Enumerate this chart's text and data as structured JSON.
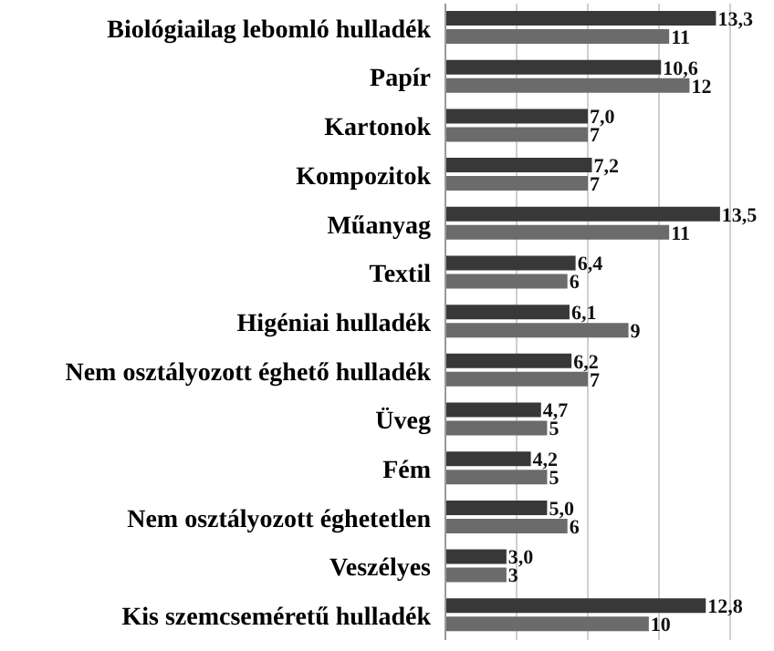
{
  "chart_data": {
    "type": "bar",
    "orientation": "horizontal",
    "categories": [
      "Biológiailag lebomló hulladék",
      "Papír",
      "Kartonok",
      "Kompozitok",
      "Műanyag",
      "Textil",
      "Higéniai hulladék",
      "Nem osztályozott éghető hulladék",
      "Üveg",
      "Fém",
      "Nem osztályozott éghetetlen",
      "Veszélyes",
      "Kis szemcseméretű hulladék"
    ],
    "series": [
      {
        "color": "#383838",
        "values": [
          13.3,
          10.6,
          7.0,
          7.2,
          13.5,
          6.4,
          6.1,
          6.2,
          4.7,
          4.2,
          5.0,
          3.0,
          12.8
        ],
        "value_labels": [
          "13,3",
          "10,6",
          "7,0",
          "7,2",
          "13,5",
          "6,4",
          "6,1",
          "6,2",
          "4,7",
          "4,2",
          "5,0",
          "3,0",
          "12,8"
        ]
      },
      {
        "color": "#6b6b6b",
        "values": [
          11,
          12,
          7,
          7,
          11,
          6,
          9,
          7,
          5,
          5,
          6,
          3,
          10
        ],
        "value_labels": [
          "11",
          "12",
          "7",
          "7",
          "11",
          "6",
          "9",
          "7",
          "5",
          "5",
          "6",
          "3",
          "10"
        ]
      }
    ],
    "xlim": [
      0,
      14
    ],
    "xticks": [
      {
        "value": 0,
        "label": null
      },
      {
        "value": 3.5,
        "label": null
      },
      {
        "value": 7,
        "label": null
      },
      {
        "value": 10.5,
        "label": null
      },
      {
        "value": 14,
        "label": null
      }
    ],
    "grid": "x",
    "tick_labels": "y"
  }
}
